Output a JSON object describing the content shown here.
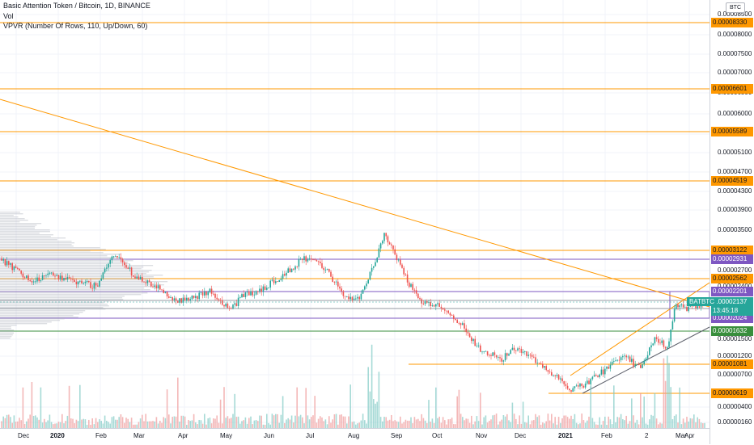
{
  "header": {
    "title": "Basic Attention Token / Bitcoin, 1D, BINANCE",
    "vol_label": "Vol",
    "vpvr_label": "VPVR (Number Of Rows, 110, Up/Down, 60)",
    "currency": "BTC"
  },
  "chart_data": {
    "type": "candlestick",
    "title": "Basic Attention Token / Bitcoin, 1D, BINANCE",
    "symbol": "BATBTC",
    "indicators": [
      "Vol",
      "VPVR (Number Of Rows, 110, Up/Down, 60)"
    ],
    "price_axis_ticks": [
      "0.00008500",
      "0.00008000",
      "0.00007500",
      "0.00007000",
      "0.00006500",
      "0.00006000",
      "0.00005500",
      "0.00005100",
      "0.00004700",
      "0.00004300",
      "0.00003900",
      "0.00003500",
      "0.00002700",
      "0.00002400",
      "0.00001500",
      "0.00001200",
      "0.00000700",
      "0.00000400",
      "0.00000160"
    ],
    "time_axis_labels": [
      "Dec",
      "2020",
      "Feb",
      "Mar",
      "Apr",
      "May",
      "Jun",
      "Jul",
      "Aug",
      "Sep",
      "Oct",
      "Nov",
      "Dec",
      "2021",
      "Feb",
      "2",
      "Mar",
      "Apr"
    ],
    "horizontal_levels": [
      {
        "label": "0.00008330",
        "color": "#ff9800"
      },
      {
        "label": "0.00006601",
        "color": "#ff9800"
      },
      {
        "label": "0.00005589",
        "color": "#ff9800"
      },
      {
        "label": "0.00004519",
        "color": "#ff9800"
      },
      {
        "label": "0.00003122",
        "color": "#ff9800"
      },
      {
        "label": "0.00002931",
        "color": "#7e57c2"
      },
      {
        "label": "0.00002562",
        "color": "#ff9800"
      },
      {
        "label": "0.00002201",
        "color": "#7e57c2"
      },
      {
        "label": "0.00002024",
        "color": "#7e57c2"
      },
      {
        "label": "0.00001632",
        "color": "#388e3c"
      },
      {
        "label": "0.00001081",
        "color": "#ff9800"
      },
      {
        "label": "0.00000619",
        "color": "#ff9800"
      }
    ],
    "last_price": "0.00002137",
    "countdown": "13:45:18",
    "colors": {
      "up": "#26a69a",
      "down": "#ef5350",
      "level": "#ff9800",
      "purple": "#7e57c2",
      "green": "#388e3c",
      "trend_gray": "#5d606b"
    }
  }
}
